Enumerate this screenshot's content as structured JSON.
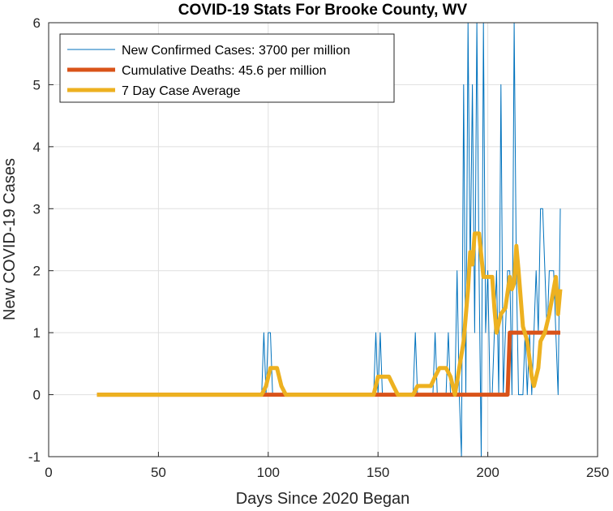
{
  "chart_data": {
    "type": "line",
    "title": "COVID-19 Stats For Brooke County, WV",
    "xlabel": "Days Since 2020 Began",
    "ylabel": "New COVID-19 Cases",
    "xlim": [
      0,
      250
    ],
    "ylim": [
      -1,
      6
    ],
    "xticks": [
      "0",
      "50",
      "100",
      "150",
      "200",
      "250"
    ],
    "yticks": [
      "-1",
      "0",
      "1",
      "2",
      "3",
      "4",
      "5",
      "6"
    ],
    "grid": true,
    "legend_position": "top-left",
    "series": [
      {
        "name": "New Confirmed Cases: 3700 per million",
        "color": "#0072BD",
        "style": "thin",
        "points": [
          [
            22,
            0
          ],
          [
            97,
            0
          ],
          [
            98,
            1
          ],
          [
            99,
            0
          ],
          [
            100,
            1
          ],
          [
            101,
            1
          ],
          [
            102,
            0
          ],
          [
            148,
            0
          ],
          [
            149,
            1
          ],
          [
            150,
            0
          ],
          [
            151,
            1
          ],
          [
            152,
            0
          ],
          [
            166,
            0
          ],
          [
            167,
            1
          ],
          [
            168,
            0
          ],
          [
            175,
            0
          ],
          [
            176,
            1
          ],
          [
            177,
            0
          ],
          [
            180,
            0
          ],
          [
            181,
            0
          ],
          [
            182,
            1
          ],
          [
            183,
            0
          ],
          [
            184,
            0
          ],
          [
            185,
            0
          ],
          [
            186,
            2
          ],
          [
            187,
            0
          ],
          [
            188,
            -1
          ],
          [
            189,
            5
          ],
          [
            190,
            0
          ],
          [
            191,
            6
          ],
          [
            192,
            2
          ],
          [
            193,
            5
          ],
          [
            194,
            1
          ],
          [
            195,
            6
          ],
          [
            196,
            2
          ],
          [
            197,
            -1
          ],
          [
            198,
            6
          ],
          [
            199,
            1
          ],
          [
            200,
            2
          ],
          [
            201,
            0
          ],
          [
            202,
            0
          ],
          [
            203,
            1
          ],
          [
            204,
            2
          ],
          [
            205,
            0
          ],
          [
            206,
            5
          ],
          [
            207,
            0
          ],
          [
            208,
            1
          ],
          [
            209,
            2
          ],
          [
            210,
            2
          ],
          [
            211,
            0
          ],
          [
            212,
            6
          ],
          [
            213,
            2
          ],
          [
            214,
            0
          ],
          [
            215,
            0
          ],
          [
            216,
            0
          ],
          [
            217,
            1
          ],
          [
            218,
            0
          ],
          [
            219,
            1
          ],
          [
            220,
            0
          ],
          [
            221,
            1
          ],
          [
            222,
            2
          ],
          [
            223,
            1
          ],
          [
            224,
            3
          ],
          [
            225,
            3
          ],
          [
            226,
            2
          ],
          [
            227,
            1
          ],
          [
            228,
            2
          ],
          [
            229,
            2
          ],
          [
            230,
            2
          ],
          [
            231,
            1
          ],
          [
            232,
            0
          ],
          [
            233,
            3
          ]
        ]
      },
      {
        "name": "Cumulative Deaths: 45.6 per million",
        "color": "#D95319",
        "style": "thick",
        "points": [
          [
            22,
            0
          ],
          [
            209,
            0
          ],
          [
            210,
            1
          ],
          [
            233,
            1
          ]
        ]
      },
      {
        "name": "7 Day Case Average",
        "color": "#EDB120",
        "style": "thick",
        "points": [
          [
            22,
            0
          ],
          [
            97,
            0
          ],
          [
            99,
            0.14
          ],
          [
            101,
            0.43
          ],
          [
            104,
            0.43
          ],
          [
            106,
            0.14
          ],
          [
            108,
            0
          ],
          [
            148,
            0
          ],
          [
            150,
            0.29
          ],
          [
            155,
            0.29
          ],
          [
            157,
            0.14
          ],
          [
            159,
            0
          ],
          [
            166,
            0
          ],
          [
            168,
            0.14
          ],
          [
            174,
            0.14
          ],
          [
            176,
            0.29
          ],
          [
            178,
            0.43
          ],
          [
            181,
            0.43
          ],
          [
            183,
            0.29
          ],
          [
            185,
            0
          ],
          [
            187,
            0.43
          ],
          [
            189,
            0.86
          ],
          [
            191,
            1.7
          ],
          [
            192,
            2.3
          ],
          [
            193,
            2.1
          ],
          [
            194,
            2.6
          ],
          [
            196,
            2.6
          ],
          [
            198,
            1.9
          ],
          [
            202,
            1.9
          ],
          [
            203,
            1.4
          ],
          [
            204,
            1.0
          ],
          [
            206,
            1.3
          ],
          [
            208,
            1.4
          ],
          [
            210,
            1.9
          ],
          [
            211,
            1.7
          ],
          [
            212,
            1.8
          ],
          [
            213,
            2.4
          ],
          [
            214,
            2.0
          ],
          [
            216,
            1.1
          ],
          [
            218,
            0.86
          ],
          [
            220,
            0.29
          ],
          [
            221,
            0.14
          ],
          [
            223,
            0.43
          ],
          [
            224,
            0.86
          ],
          [
            226,
            1.0
          ],
          [
            228,
            1.3
          ],
          [
            230,
            1.7
          ],
          [
            231,
            1.9
          ],
          [
            232,
            1.3
          ],
          [
            233,
            1.7
          ]
        ]
      }
    ]
  }
}
